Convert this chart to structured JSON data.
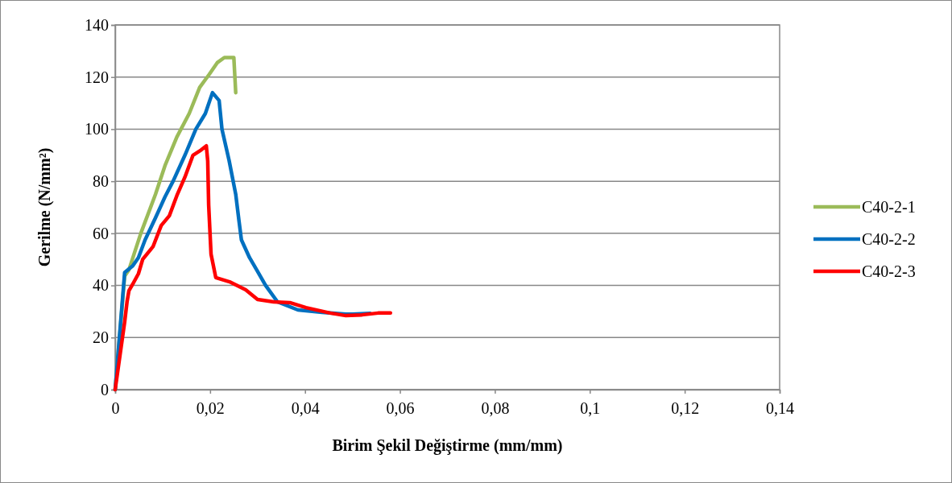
{
  "chart_data": {
    "type": "line",
    "xlabel": "Birim Şekil Değiştirme (mm/mm)",
    "ylabel": "Gerilme (N/mm²)",
    "xlim": [
      0,
      0.14
    ],
    "xticks": [
      0,
      {
        "value": 0.02,
        "label": "0,02"
      },
      {
        "value": 0.04,
        "label": "0,04"
      },
      {
        "value": 0.06,
        "label": "0,06"
      },
      {
        "value": 0.08,
        "label": "0,08"
      },
      {
        "value": 0.1,
        "label": "0,1"
      },
      {
        "value": 0.12,
        "label": "0,12"
      },
      {
        "value": 0.14,
        "label": "0,14"
      }
    ],
    "ylim": [
      0,
      140
    ],
    "yticks": [
      0,
      20,
      40,
      60,
      80,
      100,
      120,
      140
    ],
    "grid": "y",
    "legend": "right",
    "marker": "none",
    "line_style": "solid",
    "series": [
      {
        "name": "C40-2-1",
        "color": "#9bbb59",
        "x": [
          0,
          0.002,
          0.0029,
          0.0054,
          0.0085,
          0.0105,
          0.013,
          0.0156,
          0.0178,
          0.0198,
          0.0215,
          0.023,
          0.025,
          0.0254
        ],
        "values": [
          0,
          43.6,
          46,
          60,
          75,
          86,
          97,
          106,
          116,
          121,
          125.5,
          127.5,
          127.5,
          114
        ]
      },
      {
        "name": "C40-2-2",
        "color": "#0070c0",
        "x": [
          0,
          0.002,
          0.0037,
          0.0049,
          0.0063,
          0.0085,
          0.0105,
          0.0122,
          0.0147,
          0.017,
          0.019,
          0.0205,
          0.0219,
          0.0225,
          0.024,
          0.0254,
          0.0261,
          0.0266,
          0.0283,
          0.03,
          0.0317,
          0.0342,
          0.0385,
          0.0436,
          0.0486,
          0.05,
          0.0537
        ],
        "values": [
          0,
          45,
          47.5,
          50.7,
          57.5,
          66,
          74,
          80,
          90,
          100,
          106,
          114,
          111,
          100,
          88,
          75,
          64.6,
          57.5,
          50.7,
          45.4,
          40,
          33.7,
          30.6,
          29.7,
          29,
          29,
          29.3
        ]
      },
      {
        "name": "C40-2-3",
        "color": "#ff0000",
        "x": [
          0,
          0.002,
          0.0025,
          0.0029,
          0.0037,
          0.0049,
          0.0058,
          0.008,
          0.0097,
          0.0114,
          0.013,
          0.0147,
          0.0164,
          0.0181,
          0.0192,
          0.0195,
          0.0197,
          0.0202,
          0.0212,
          0.0241,
          0.0275,
          0.03,
          0.0334,
          0.0368,
          0.0402,
          0.0453,
          0.0486,
          0.052,
          0.0554,
          0.058
        ],
        "values": [
          0,
          26,
          33.7,
          38,
          40.5,
          44.5,
          50,
          55,
          63,
          66.7,
          74.5,
          81.6,
          90,
          92,
          93.6,
          87.8,
          70.8,
          52,
          43,
          41.4,
          38.3,
          34.6,
          33.7,
          33.4,
          31.5,
          29.4,
          28.4,
          28.7,
          29.4,
          29.4
        ]
      }
    ]
  }
}
